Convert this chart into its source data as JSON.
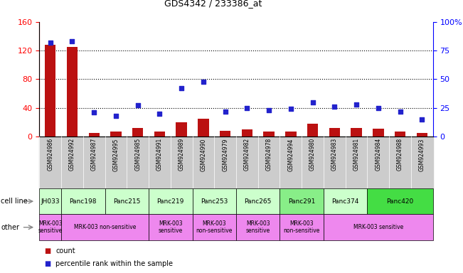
{
  "title": "GDS4342 / 233386_at",
  "samples": [
    "GSM924986",
    "GSM924992",
    "GSM924987",
    "GSM924995",
    "GSM924985",
    "GSM924991",
    "GSM924989",
    "GSM924990",
    "GSM924979",
    "GSM924982",
    "GSM924978",
    "GSM924994",
    "GSM924980",
    "GSM924983",
    "GSM924981",
    "GSM924984",
    "GSM924988",
    "GSM924993"
  ],
  "counts": [
    128,
    125,
    5,
    7,
    12,
    7,
    20,
    25,
    8,
    10,
    7,
    7,
    18,
    12,
    12,
    11,
    7,
    5
  ],
  "percentiles": [
    82,
    83,
    21,
    18,
    27,
    20,
    42,
    48,
    22,
    25,
    23,
    24,
    30,
    26,
    28,
    25,
    22,
    15
  ],
  "cell_lines": [
    {
      "name": "JH033",
      "start": 0,
      "end": 1,
      "color": "#ccffcc"
    },
    {
      "name": "Panc198",
      "start": 1,
      "end": 3,
      "color": "#ccffcc"
    },
    {
      "name": "Panc215",
      "start": 3,
      "end": 5,
      "color": "#ccffcc"
    },
    {
      "name": "Panc219",
      "start": 5,
      "end": 7,
      "color": "#ccffcc"
    },
    {
      "name": "Panc253",
      "start": 7,
      "end": 9,
      "color": "#ccffcc"
    },
    {
      "name": "Panc265",
      "start": 9,
      "end": 11,
      "color": "#ccffcc"
    },
    {
      "name": "Panc291",
      "start": 11,
      "end": 13,
      "color": "#88ee88"
    },
    {
      "name": "Panc374",
      "start": 13,
      "end": 15,
      "color": "#ccffcc"
    },
    {
      "name": "Panc420",
      "start": 15,
      "end": 18,
      "color": "#44dd44"
    }
  ],
  "other_groups": [
    {
      "name": "MRK-003\nsensitive",
      "start": 0,
      "end": 1,
      "color": "#ee88ee"
    },
    {
      "name": "MRK-003 non-sensitive",
      "start": 1,
      "end": 5,
      "color": "#ee88ee"
    },
    {
      "name": "MRK-003\nsensitive",
      "start": 5,
      "end": 7,
      "color": "#ee88ee"
    },
    {
      "name": "MRK-003\nnon-sensitive",
      "start": 7,
      "end": 9,
      "color": "#ee88ee"
    },
    {
      "name": "MRK-003\nsensitive",
      "start": 9,
      "end": 11,
      "color": "#ee88ee"
    },
    {
      "name": "MRK-003\nnon-sensitive",
      "start": 11,
      "end": 13,
      "color": "#ee88ee"
    },
    {
      "name": "MRK-003 sensitive",
      "start": 13,
      "end": 18,
      "color": "#ee88ee"
    }
  ],
  "ylim_left": [
    0,
    160
  ],
  "ylim_right": [
    0,
    100
  ],
  "yticks_left": [
    0,
    40,
    80,
    120,
    160
  ],
  "yticks_right": [
    0,
    25,
    50,
    75,
    100
  ],
  "ytick_labels_right": [
    "0",
    "25",
    "50",
    "75",
    "100%"
  ],
  "bar_color": "#bb1111",
  "scatter_color": "#2222cc",
  "tick_bg_color": "#cccccc",
  "cell_line_label_color": "#888888"
}
